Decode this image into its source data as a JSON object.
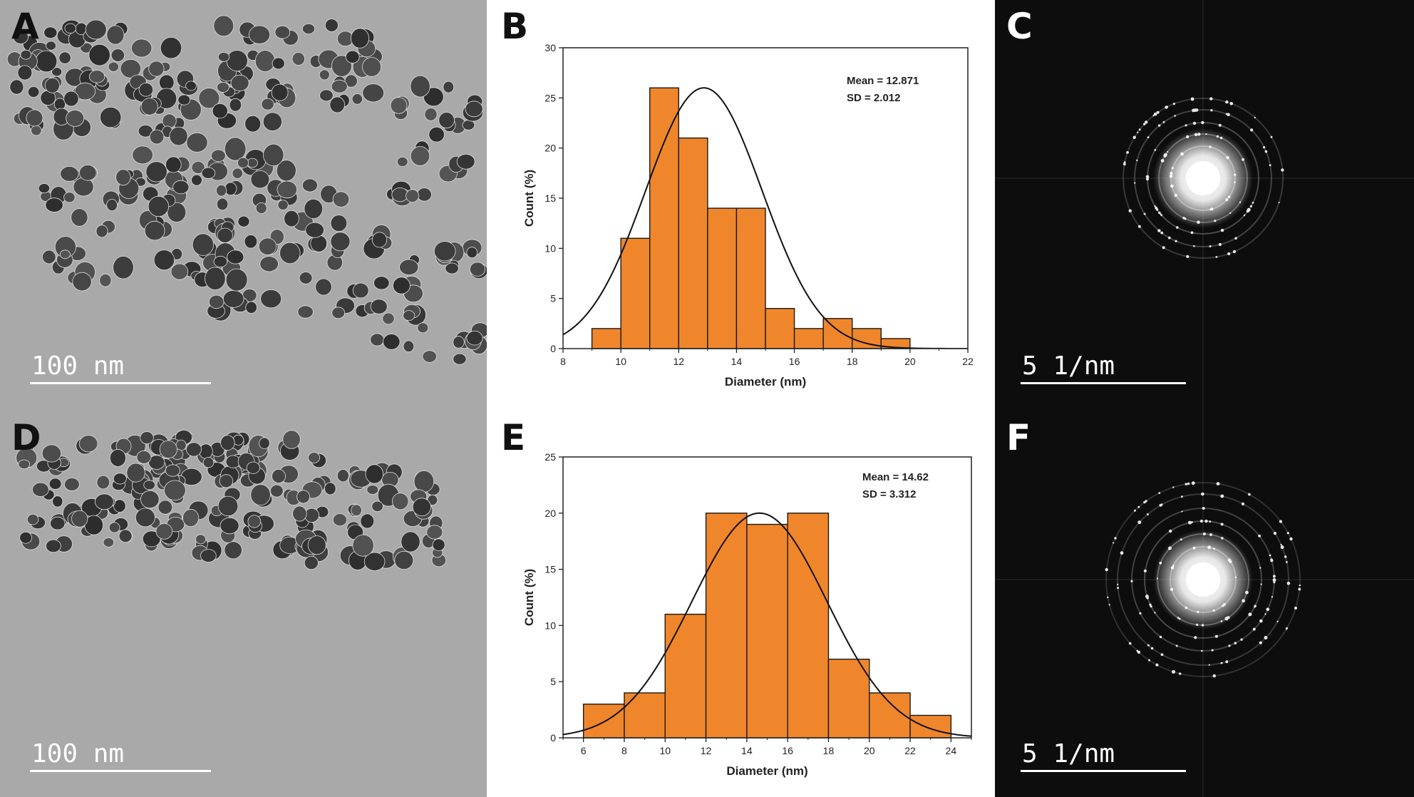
{
  "figure": {
    "panels": {
      "A": {
        "letter": "A",
        "scalebar": "100 nm"
      },
      "B": {
        "letter": "B"
      },
      "C": {
        "letter": "C",
        "scalebar": "5 1/nm"
      },
      "D": {
        "letter": "D",
        "scalebar": "100 nm"
      },
      "E": {
        "letter": "E"
      },
      "F": {
        "letter": "F",
        "scalebar": "5 1/nm"
      }
    },
    "colors": {
      "tem_background": "#a9a9a9",
      "particle": "#3a3a3a",
      "saed_background": "#0d0d0d",
      "bar_fill": "#f0862b",
      "bar_stroke": "#1a1a1a",
      "panel_letter_on_gray": "#111111",
      "panel_letter_on_dark": "#ffffff"
    },
    "icons": {
      "tem_image": "tem-micrograph",
      "saed_image": "saed-diffraction-pattern"
    }
  },
  "chart_data": [
    {
      "panel": "B",
      "type": "bar",
      "xlabel": "Diameter (nm)",
      "ylabel": "Count (%)",
      "xlim": [
        8,
        22
      ],
      "ylim": [
        0,
        30
      ],
      "xticks": [
        8,
        10,
        12,
        14,
        16,
        18,
        20,
        22
      ],
      "yticks": [
        0,
        5,
        10,
        15,
        20,
        25,
        30
      ],
      "bins": [
        {
          "from": 9,
          "to": 10,
          "value": 2
        },
        {
          "from": 10,
          "to": 11,
          "value": 11
        },
        {
          "from": 11,
          "to": 12,
          "value": 26
        },
        {
          "from": 12,
          "to": 13,
          "value": 21
        },
        {
          "from": 13,
          "to": 14,
          "value": 14
        },
        {
          "from": 14,
          "to": 15,
          "value": 14
        },
        {
          "from": 15,
          "to": 16,
          "value": 4
        },
        {
          "from": 16,
          "to": 17,
          "value": 2
        },
        {
          "from": 17,
          "to": 18,
          "value": 3
        },
        {
          "from": 18,
          "to": 19,
          "value": 2
        },
        {
          "from": 19,
          "to": 20,
          "value": 1
        }
      ],
      "fit": {
        "type": "gaussian",
        "mean": 12.871,
        "sd": 2.012,
        "peak": 26
      },
      "annotations": [
        "Mean = 12.871",
        "SD = 2.012"
      ],
      "grid": false,
      "legend": "none"
    },
    {
      "panel": "E",
      "type": "bar",
      "xlabel": "Diameter (nm)",
      "ylabel": "Count (%)",
      "xlim": [
        5,
        25
      ],
      "ylim": [
        0,
        25
      ],
      "xticks": [
        6,
        8,
        10,
        12,
        14,
        16,
        18,
        20,
        22,
        24
      ],
      "yticks": [
        0,
        5,
        10,
        15,
        20,
        25
      ],
      "bins": [
        {
          "from": 6,
          "to": 8,
          "value": 3
        },
        {
          "from": 8,
          "to": 10,
          "value": 4
        },
        {
          "from": 10,
          "to": 12,
          "value": 11
        },
        {
          "from": 12,
          "to": 14,
          "value": 20
        },
        {
          "from": 14,
          "to": 16,
          "value": 19
        },
        {
          "from": 16,
          "to": 18,
          "value": 20
        },
        {
          "from": 18,
          "to": 20,
          "value": 7
        },
        {
          "from": 20,
          "to": 22,
          "value": 4
        },
        {
          "from": 22,
          "to": 24,
          "value": 2
        }
      ],
      "fit": {
        "type": "gaussian",
        "mean": 14.62,
        "sd": 3.312,
        "peak": 20
      },
      "annotations": [
        "Mean = 14.62",
        "SD = 3.312"
      ],
      "grid": false,
      "legend": "none"
    }
  ]
}
